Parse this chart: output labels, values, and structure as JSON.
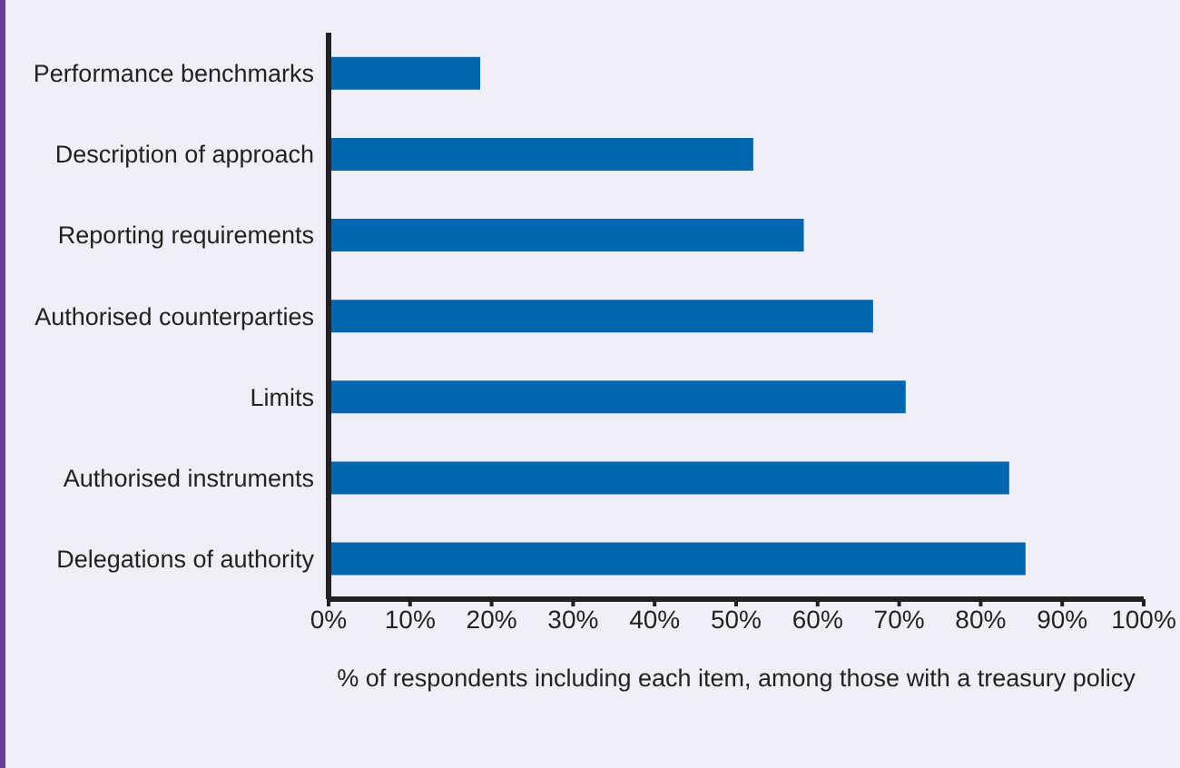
{
  "chart_data": {
    "type": "bar",
    "orientation": "horizontal",
    "xlabel": "% of respondents including each item, among those with a treasury policy",
    "categories": [
      "Performance benchmarks",
      "Description of approach",
      "Reporting requirements",
      "Authorised counterparties",
      "Limits",
      "Authorised instruments",
      "Delegations of authority"
    ],
    "values": [
      18.6,
      52.1,
      58.3,
      66.8,
      70.8,
      83.5,
      85.5
    ],
    "color": "#0066b0",
    "xlim": [
      0,
      100
    ],
    "xticks": [
      {
        "value": 0,
        "label": "0%"
      },
      {
        "value": 10,
        "label": "10%"
      },
      {
        "value": 20,
        "label": "20%"
      },
      {
        "value": 30,
        "label": "30%"
      },
      {
        "value": 40,
        "label": "40%"
      },
      {
        "value": 50,
        "label": "50%"
      },
      {
        "value": 60,
        "label": "60%"
      },
      {
        "value": 70,
        "label": "70%"
      },
      {
        "value": 80,
        "label": "80%"
      },
      {
        "value": 90,
        "label": "90%"
      },
      {
        "value": 100,
        "label": "100%"
      }
    ],
    "grid": false,
    "legend": false
  }
}
